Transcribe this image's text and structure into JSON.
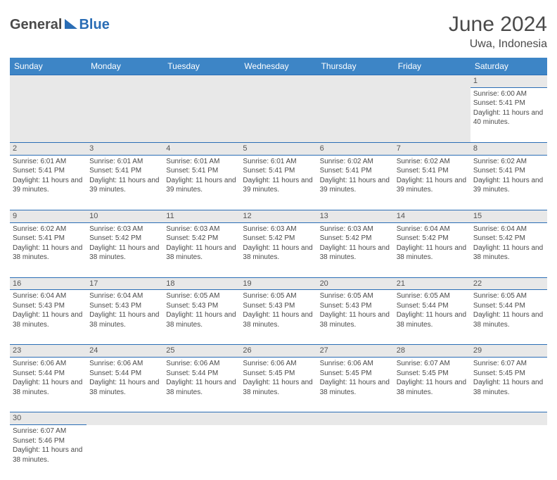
{
  "logo": {
    "text1": "General",
    "text2": "Blue"
  },
  "title": "June 2024",
  "location": "Uwa, Indonesia",
  "colors": {
    "header_bg": "#3d85c6",
    "header_fg": "#ffffff",
    "daynum_bg": "#e8e8e8",
    "border": "#2a6db5",
    "text": "#4a4a4a",
    "brand_blue": "#2a6db5"
  },
  "daysOfWeek": [
    "Sunday",
    "Monday",
    "Tuesday",
    "Wednesday",
    "Thursday",
    "Friday",
    "Saturday"
  ],
  "weeks": [
    [
      null,
      null,
      null,
      null,
      null,
      null,
      {
        "n": "1",
        "sunrise": "6:00 AM",
        "sunset": "5:41 PM",
        "daylight": "11 hours and 40 minutes."
      }
    ],
    [
      {
        "n": "2",
        "sunrise": "6:01 AM",
        "sunset": "5:41 PM",
        "daylight": "11 hours and 39 minutes."
      },
      {
        "n": "3",
        "sunrise": "6:01 AM",
        "sunset": "5:41 PM",
        "daylight": "11 hours and 39 minutes."
      },
      {
        "n": "4",
        "sunrise": "6:01 AM",
        "sunset": "5:41 PM",
        "daylight": "11 hours and 39 minutes."
      },
      {
        "n": "5",
        "sunrise": "6:01 AM",
        "sunset": "5:41 PM",
        "daylight": "11 hours and 39 minutes."
      },
      {
        "n": "6",
        "sunrise": "6:02 AM",
        "sunset": "5:41 PM",
        "daylight": "11 hours and 39 minutes."
      },
      {
        "n": "7",
        "sunrise": "6:02 AM",
        "sunset": "5:41 PM",
        "daylight": "11 hours and 39 minutes."
      },
      {
        "n": "8",
        "sunrise": "6:02 AM",
        "sunset": "5:41 PM",
        "daylight": "11 hours and 39 minutes."
      }
    ],
    [
      {
        "n": "9",
        "sunrise": "6:02 AM",
        "sunset": "5:41 PM",
        "daylight": "11 hours and 38 minutes."
      },
      {
        "n": "10",
        "sunrise": "6:03 AM",
        "sunset": "5:42 PM",
        "daylight": "11 hours and 38 minutes."
      },
      {
        "n": "11",
        "sunrise": "6:03 AM",
        "sunset": "5:42 PM",
        "daylight": "11 hours and 38 minutes."
      },
      {
        "n": "12",
        "sunrise": "6:03 AM",
        "sunset": "5:42 PM",
        "daylight": "11 hours and 38 minutes."
      },
      {
        "n": "13",
        "sunrise": "6:03 AM",
        "sunset": "5:42 PM",
        "daylight": "11 hours and 38 minutes."
      },
      {
        "n": "14",
        "sunrise": "6:04 AM",
        "sunset": "5:42 PM",
        "daylight": "11 hours and 38 minutes."
      },
      {
        "n": "15",
        "sunrise": "6:04 AM",
        "sunset": "5:42 PM",
        "daylight": "11 hours and 38 minutes."
      }
    ],
    [
      {
        "n": "16",
        "sunrise": "6:04 AM",
        "sunset": "5:43 PM",
        "daylight": "11 hours and 38 minutes."
      },
      {
        "n": "17",
        "sunrise": "6:04 AM",
        "sunset": "5:43 PM",
        "daylight": "11 hours and 38 minutes."
      },
      {
        "n": "18",
        "sunrise": "6:05 AM",
        "sunset": "5:43 PM",
        "daylight": "11 hours and 38 minutes."
      },
      {
        "n": "19",
        "sunrise": "6:05 AM",
        "sunset": "5:43 PM",
        "daylight": "11 hours and 38 minutes."
      },
      {
        "n": "20",
        "sunrise": "6:05 AM",
        "sunset": "5:43 PM",
        "daylight": "11 hours and 38 minutes."
      },
      {
        "n": "21",
        "sunrise": "6:05 AM",
        "sunset": "5:44 PM",
        "daylight": "11 hours and 38 minutes."
      },
      {
        "n": "22",
        "sunrise": "6:05 AM",
        "sunset": "5:44 PM",
        "daylight": "11 hours and 38 minutes."
      }
    ],
    [
      {
        "n": "23",
        "sunrise": "6:06 AM",
        "sunset": "5:44 PM",
        "daylight": "11 hours and 38 minutes."
      },
      {
        "n": "24",
        "sunrise": "6:06 AM",
        "sunset": "5:44 PM",
        "daylight": "11 hours and 38 minutes."
      },
      {
        "n": "25",
        "sunrise": "6:06 AM",
        "sunset": "5:44 PM",
        "daylight": "11 hours and 38 minutes."
      },
      {
        "n": "26",
        "sunrise": "6:06 AM",
        "sunset": "5:45 PM",
        "daylight": "11 hours and 38 minutes."
      },
      {
        "n": "27",
        "sunrise": "6:06 AM",
        "sunset": "5:45 PM",
        "daylight": "11 hours and 38 minutes."
      },
      {
        "n": "28",
        "sunrise": "6:07 AM",
        "sunset": "5:45 PM",
        "daylight": "11 hours and 38 minutes."
      },
      {
        "n": "29",
        "sunrise": "6:07 AM",
        "sunset": "5:45 PM",
        "daylight": "11 hours and 38 minutes."
      }
    ],
    [
      {
        "n": "30",
        "sunrise": "6:07 AM",
        "sunset": "5:46 PM",
        "daylight": "11 hours and 38 minutes."
      },
      null,
      null,
      null,
      null,
      null,
      null
    ]
  ],
  "labels": {
    "sunrise": "Sunrise: ",
    "sunset": "Sunset: ",
    "daylight": "Daylight: "
  }
}
